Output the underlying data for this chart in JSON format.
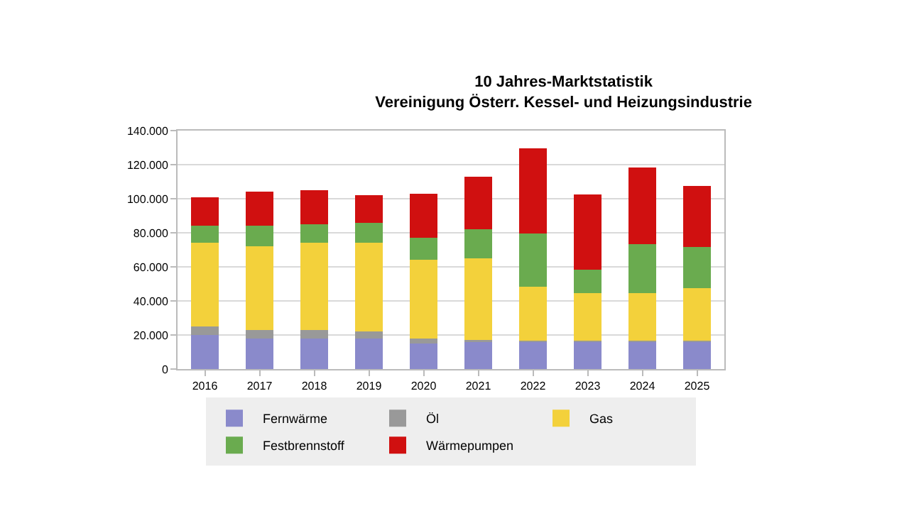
{
  "chart_data": {
    "type": "bar",
    "stacked": true,
    "title": "10 Jahres-Marktstatistik\nVereinigung Österr. Kessel- und Heizungsindustrie",
    "categories": [
      "2016",
      "2017",
      "2018",
      "2019",
      "2020",
      "2021",
      "2022",
      "2023",
      "2024",
      "2025"
    ],
    "series": [
      {
        "name": "Fernwärme",
        "color": "#8a8acb",
        "values": [
          20000,
          18000,
          18000,
          18000,
          15000,
          16000,
          16000,
          16000,
          16000,
          16000
        ]
      },
      {
        "name": "Öl",
        "color": "#999999",
        "values": [
          5000,
          5000,
          5000,
          4000,
          3000,
          1000,
          500,
          500,
          500,
          500
        ]
      },
      {
        "name": "Gas",
        "color": "#f3d13b",
        "values": [
          49000,
          49000,
          51000,
          52000,
          46000,
          48000,
          32000,
          28000,
          28000,
          31000
        ]
      },
      {
        "name": "Festbrennstoff",
        "color": "#6aab4f",
        "values": [
          10000,
          12000,
          11000,
          12000,
          13000,
          17000,
          31000,
          14000,
          29000,
          24000
        ]
      },
      {
        "name": "Wärmepumpen",
        "color": "#d01010",
        "values": [
          17000,
          20000,
          20000,
          16000,
          26000,
          31000,
          50000,
          44000,
          45000,
          36000
        ]
      }
    ],
    "ylim": [
      0,
      140000
    ],
    "yticks": [
      {
        "value": 0,
        "label": "0"
      },
      {
        "value": 20000,
        "label": "20.000"
      },
      {
        "value": 40000,
        "label": "40.000"
      },
      {
        "value": 60000,
        "label": "60.000"
      },
      {
        "value": 80000,
        "label": "80.000"
      },
      {
        "value": 100000,
        "label": "100.000"
      },
      {
        "value": 120000,
        "label": "120.000"
      },
      {
        "value": 140000,
        "label": "140.000"
      }
    ],
    "grid": "y",
    "legend": "bottom"
  }
}
